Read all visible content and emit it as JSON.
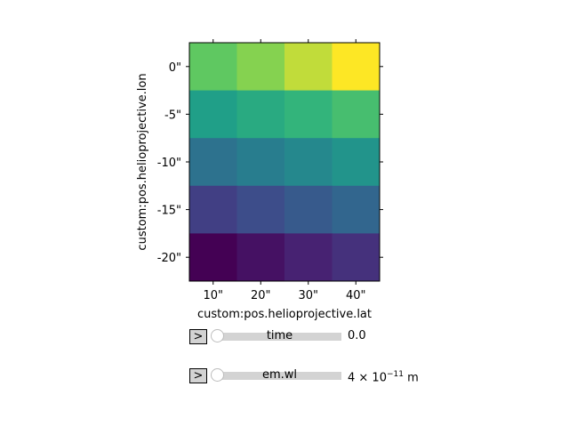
{
  "chart_data": {
    "type": "heatmap",
    "colormap": "viridis",
    "xlabel": "custom:pos.helioprojective.lat",
    "ylabel": "custom:pos.helioprojective.lon",
    "x_tick_labels": [
      "10\"",
      "20\"",
      "30\"",
      "40\""
    ],
    "y_tick_labels": [
      "0\"",
      "-5\"",
      "-10\"",
      "-15\"",
      "-20\""
    ],
    "x_values_arcsec": [
      10,
      20,
      30,
      40
    ],
    "y_values_arcsec": [
      0,
      -5,
      -10,
      -15,
      -20
    ],
    "values": [
      [
        16,
        17,
        18,
        19
      ],
      [
        12,
        13,
        14,
        15
      ],
      [
        8,
        9,
        10,
        11
      ],
      [
        4,
        5,
        6,
        7
      ],
      [
        0,
        1,
        2,
        3
      ]
    ],
    "vmin": 0,
    "vmax": 19
  },
  "sliders": [
    {
      "button_label": ">",
      "label": "time",
      "value_text": "0.0"
    },
    {
      "button_label": ">",
      "label": "em.wl",
      "value_mantissa": "4 × 10",
      "value_exponent": "−11",
      "value_unit": " m"
    }
  ]
}
